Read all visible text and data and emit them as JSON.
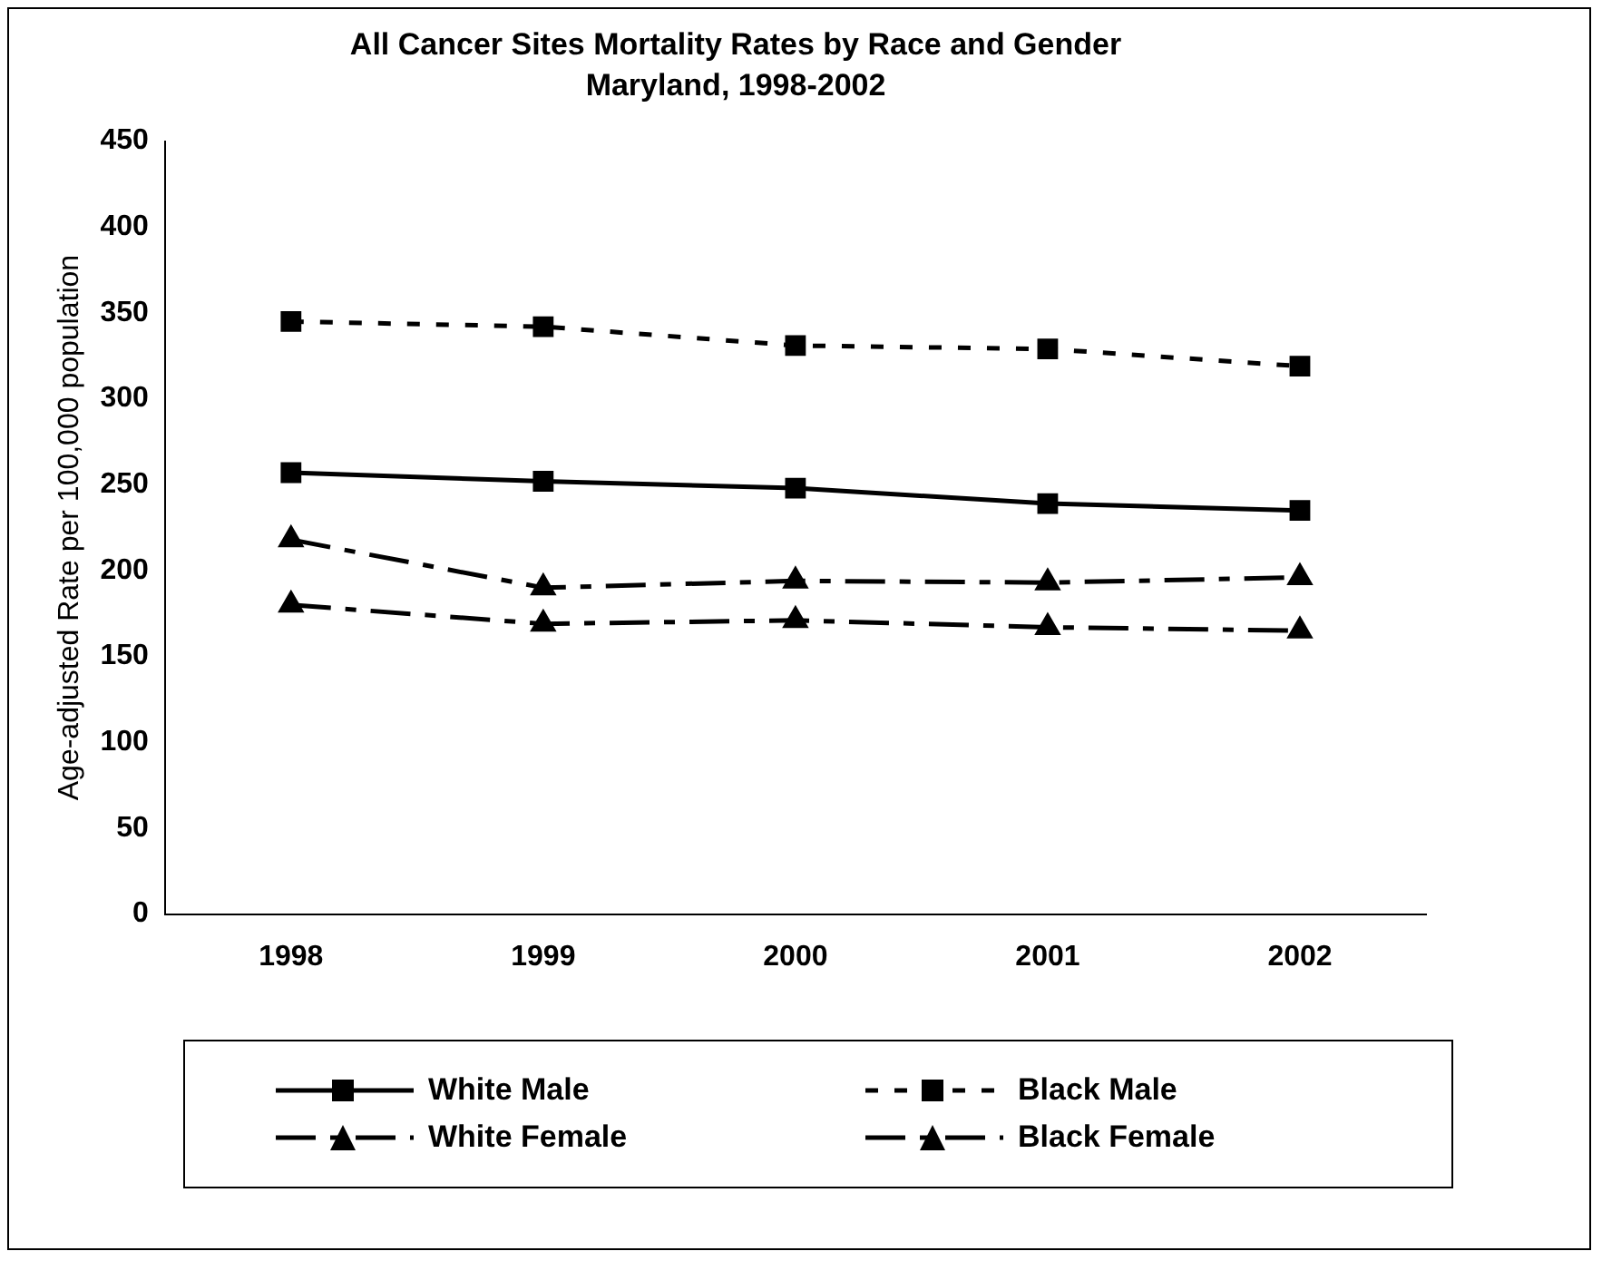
{
  "chart_data": {
    "type": "line",
    "title": "All Cancer Sites Mortality Rates by Race and Gender",
    "subtitle": "Maryland, 1998-2002",
    "ylabel": "Age-adjusted Rate per 100,000 population",
    "categories": [
      "1998",
      "1999",
      "2000",
      "2001",
      "2002"
    ],
    "series": [
      {
        "name": "White Male",
        "color": "#000000",
        "marker": "square",
        "line_style": "solid",
        "values": [
          257,
          252,
          248,
          239,
          235
        ]
      },
      {
        "name": "Black Male",
        "color": "#000000",
        "marker": "square",
        "line_style": "dotted",
        "values": [
          345,
          342,
          331,
          329,
          319
        ]
      },
      {
        "name": "White Female",
        "color": "#000000",
        "marker": "triangle",
        "line_style": "dashed",
        "values": [
          180,
          169,
          171,
          167,
          165
        ]
      },
      {
        "name": "Black Female",
        "color": "#000000",
        "marker": "triangle",
        "line_style": "dashed",
        "values": [
          218,
          190,
          194,
          193,
          196
        ]
      }
    ],
    "ylim": [
      0,
      450
    ],
    "yticks": [
      0,
      50,
      100,
      150,
      200,
      250,
      300,
      350,
      400,
      450
    ],
    "grid": false,
    "legend": "bottom"
  }
}
